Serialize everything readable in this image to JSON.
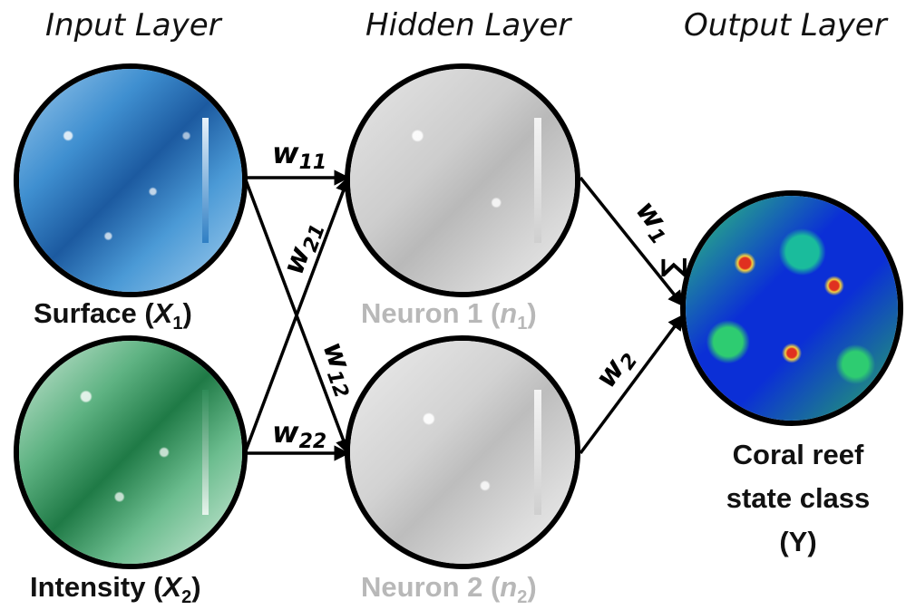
{
  "layers": {
    "input": "Input Layer",
    "hidden": "Hidden Layer",
    "output": "Output Layer"
  },
  "nodes": {
    "x1": {
      "name": "Surface (",
      "var": "X",
      "sub": "1",
      "close": ")"
    },
    "x2": {
      "name": "Intensity (",
      "var": "X",
      "sub": "2",
      "close": ")"
    },
    "n1": {
      "name": "Neuron 1 (",
      "var": "n",
      "sub": "1",
      "close": ")"
    },
    "n2": {
      "name": "Neuron 2 (",
      "var": "n",
      "sub": "2",
      "close": ")"
    },
    "y": {
      "line1": "Coral reef",
      "line2": "state class",
      "line3": "(Y)"
    }
  },
  "weights": {
    "w11": {
      "base": "w",
      "sub": "11"
    },
    "w21": {
      "base": "w",
      "sub": "21"
    },
    "w12": {
      "base": "w",
      "sub": "12"
    },
    "w22": {
      "base": "w",
      "sub": "22"
    },
    "w1": {
      "base": "w",
      "sub": "1"
    },
    "w2": {
      "base": "w",
      "sub": "2"
    }
  },
  "colors": {
    "input_surface": "#2f7fc4",
    "input_intensity": "#2e8b57",
    "hidden": "#cfcfcf",
    "output_low": "#0b2fd6",
    "output_mid": "#2ecc71",
    "output_high": "#e03020"
  }
}
